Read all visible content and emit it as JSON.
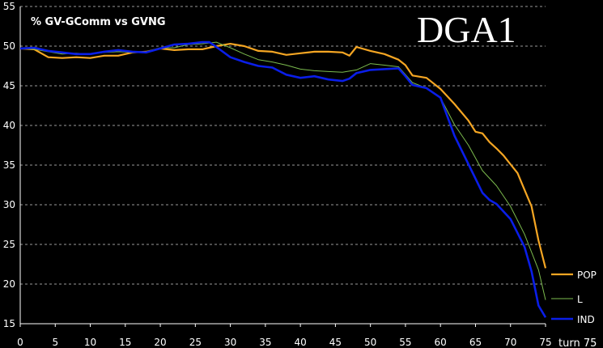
{
  "chart_data": {
    "type": "line",
    "subtitle": "% GV-GComm vs GVNG",
    "title": "DGA1",
    "x_unit_label": "turn 75",
    "xlim": [
      0,
      75
    ],
    "ylim": [
      15,
      55
    ],
    "x_ticks": [
      0,
      5,
      10,
      15,
      20,
      25,
      30,
      35,
      40,
      45,
      50,
      55,
      60,
      65,
      70,
      75
    ],
    "y_ticks": [
      15,
      20,
      25,
      30,
      35,
      40,
      45,
      50,
      55
    ],
    "grid": "horizontal dashed",
    "legend_position": "right",
    "series": [
      {
        "name": "POP",
        "color": "#f5a623",
        "x": [
          0,
          2,
          4,
          6,
          8,
          10,
          12,
          14,
          16,
          18,
          20,
          22,
          24,
          26,
          28,
          30,
          32,
          34,
          36,
          38,
          40,
          42,
          44,
          46,
          47,
          48,
          50,
          52,
          54,
          55,
          56,
          58,
          60,
          62,
          64,
          65,
          66,
          67,
          68,
          69,
          70,
          71,
          72,
          73,
          74,
          75
        ],
        "values": [
          49.7,
          49.6,
          48.6,
          48.5,
          48.6,
          48.5,
          48.8,
          48.8,
          49.2,
          49.3,
          49.7,
          49.5,
          49.6,
          49.6,
          50.0,
          50.3,
          50.0,
          49.4,
          49.3,
          48.9,
          49.1,
          49.3,
          49.3,
          49.2,
          48.8,
          49.9,
          49.4,
          49.0,
          48.3,
          47.6,
          46.3,
          46.0,
          44.6,
          42.7,
          40.6,
          39.2,
          39.0,
          37.9,
          37.1,
          36.2,
          35.1,
          34.0,
          31.9,
          29.8,
          25.5,
          22.0
        ]
      },
      {
        "name": "L",
        "color": "#7cbb4e",
        "x": [
          0,
          2,
          4,
          6,
          8,
          10,
          12,
          14,
          16,
          18,
          20,
          22,
          24,
          26,
          28,
          30,
          32,
          34,
          36,
          38,
          40,
          42,
          44,
          46,
          48,
          50,
          52,
          54,
          56,
          58,
          60,
          62,
          64,
          66,
          68,
          70,
          72,
          74,
          75
        ],
        "values": [
          49.7,
          49.6,
          49.3,
          49.0,
          49.1,
          49.0,
          49.2,
          49.3,
          49.2,
          49.3,
          49.8,
          49.8,
          50.2,
          50.3,
          50.5,
          49.8,
          49.0,
          48.3,
          48.0,
          47.6,
          47.1,
          46.9,
          46.8,
          46.7,
          47.0,
          47.8,
          47.6,
          47.4,
          45.4,
          44.7,
          43.5,
          40.1,
          37.5,
          34.3,
          32.4,
          29.8,
          26.3,
          21.8,
          18.0
        ]
      },
      {
        "name": "IND",
        "color": "#0a1ee8",
        "x": [
          0,
          2,
          4,
          6,
          8,
          10,
          12,
          14,
          16,
          18,
          20,
          22,
          24,
          26,
          27,
          28,
          30,
          32,
          34,
          36,
          38,
          40,
          42,
          44,
          46,
          47,
          48,
          50,
          52,
          54,
          55,
          56,
          58,
          60,
          62,
          64,
          66,
          67,
          68,
          70,
          72,
          73,
          74,
          75
        ],
        "values": [
          49.7,
          49.8,
          49.4,
          49.2,
          49.0,
          49.0,
          49.3,
          49.5,
          49.3,
          49.2,
          49.7,
          50.2,
          50.3,
          50.5,
          50.5,
          49.9,
          48.6,
          48.0,
          47.5,
          47.3,
          46.4,
          46.0,
          46.2,
          45.8,
          45.6,
          45.9,
          46.6,
          47.0,
          47.1,
          47.2,
          46.2,
          45.1,
          44.7,
          43.5,
          38.7,
          35.1,
          31.5,
          30.6,
          30.1,
          28.2,
          24.7,
          21.6,
          17.3,
          15.8
        ]
      }
    ]
  }
}
